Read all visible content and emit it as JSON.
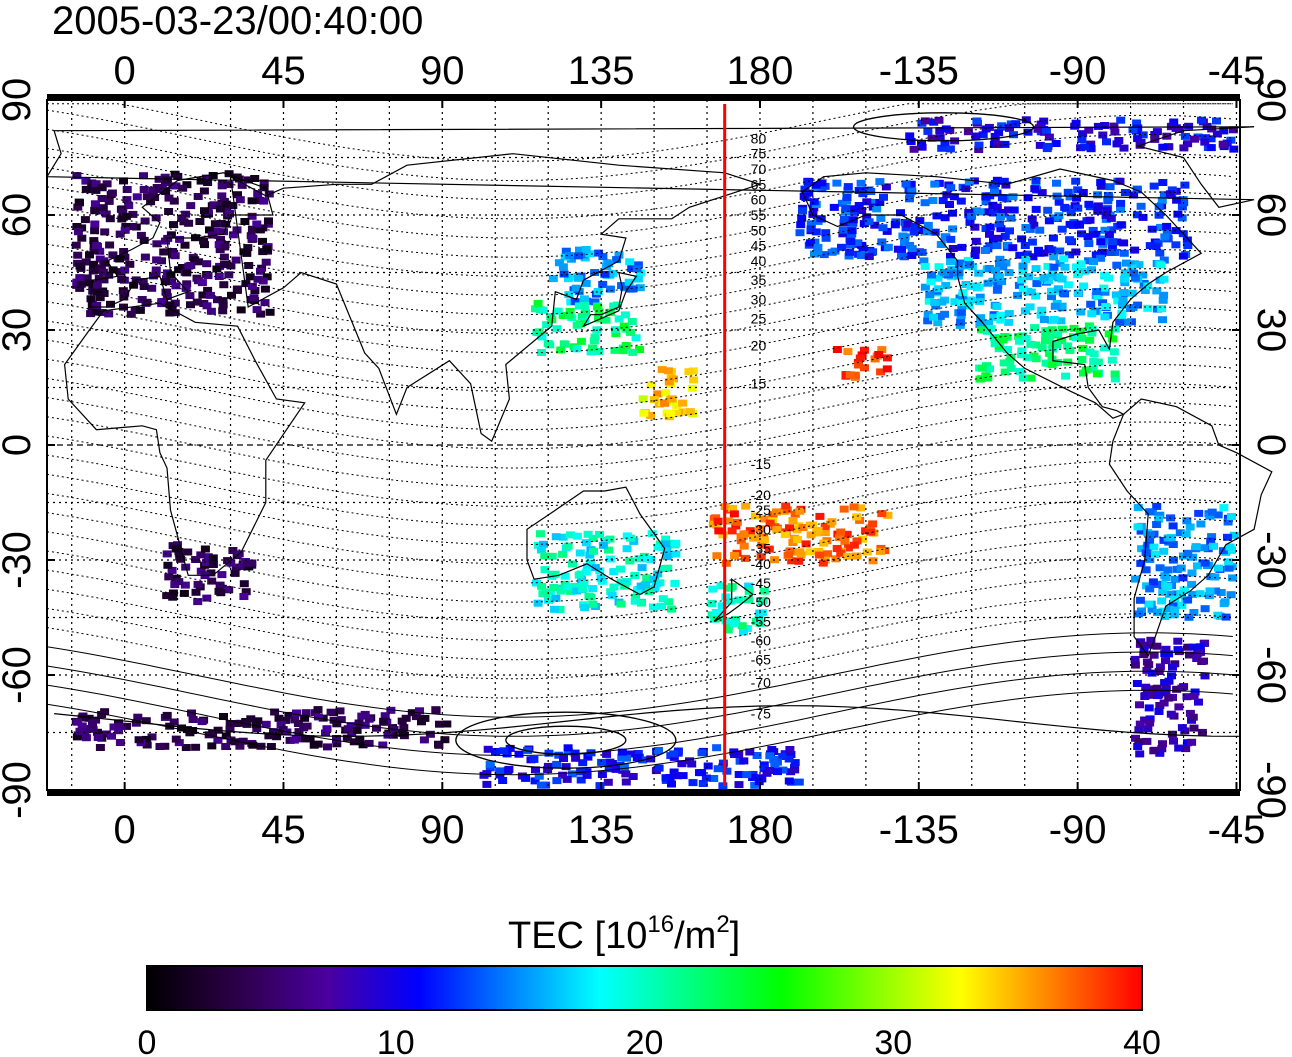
{
  "timestamp": "2005-03-23/00:40:00",
  "map": {
    "lon_ticks_top": [
      "0",
      "45",
      "90",
      "135",
      "180",
      "-135",
      "-90",
      "-45"
    ],
    "lon_ticks_bottom": [
      "0",
      "45",
      "90",
      "135",
      "180",
      "-135",
      "-90",
      "-45"
    ],
    "lat_ticks_left": [
      "90",
      "60",
      "30",
      "0",
      "-30",
      "-60",
      "-90"
    ],
    "lat_ticks_right": [
      "90",
      "60",
      "30",
      "0",
      "-30",
      "-60",
      "-90"
    ],
    "grid": true,
    "meridian_line": {
      "lon": 170,
      "color": "#ff0000"
    },
    "contour_labels": [
      {
        "text": "80",
        "lat": 80
      },
      {
        "text": "75",
        "lat": 76
      },
      {
        "text": "70",
        "lat": 72
      },
      {
        "text": "65",
        "lat": 68
      },
      {
        "text": "60",
        "lat": 64
      },
      {
        "text": "55",
        "lat": 60
      },
      {
        "text": "50",
        "lat": 56
      },
      {
        "text": "45",
        "lat": 52
      },
      {
        "text": "40",
        "lat": 48
      },
      {
        "text": "35",
        "lat": 43
      },
      {
        "text": "30",
        "lat": 38
      },
      {
        "text": "25",
        "lat": 33
      },
      {
        "text": "20",
        "lat": 26
      },
      {
        "text": "15",
        "lat": 16
      },
      {
        "text": "-15",
        "lat": -5
      },
      {
        "text": "-20",
        "lat": -13
      },
      {
        "text": "-25",
        "lat": -17
      },
      {
        "text": "-30",
        "lat": -22
      },
      {
        "text": "-35",
        "lat": -27
      },
      {
        "text": "-40",
        "lat": -31
      },
      {
        "text": "-45",
        "lat": -36
      },
      {
        "text": "-50",
        "lat": -41
      },
      {
        "text": "-55",
        "lat": -46
      },
      {
        "text": "-60",
        "lat": -51
      },
      {
        "text": "-65",
        "lat": -56
      },
      {
        "text": "-70",
        "lat": -62
      },
      {
        "text": "-75",
        "lat": -70
      }
    ]
  },
  "colorbar": {
    "label_main": "TEC  [10",
    "label_sup1": "16",
    "label_mid": "/m",
    "label_sup2": "2",
    "label_end": "]",
    "min": 0,
    "max": 40,
    "ticks": [
      "0",
      "10",
      "20",
      "30",
      "40"
    ],
    "colormap": [
      "#000000",
      "#2c0048",
      "#4a00a0",
      "#0000ff",
      "#0080ff",
      "#00ffff",
      "#00ff80",
      "#00ff00",
      "#80ff00",
      "#ffff00",
      "#ff8000",
      "#ff0000"
    ]
  },
  "tec_regions": [
    {
      "name": "europe",
      "lon0": -15,
      "lon1": 40,
      "lat0": 35,
      "lat1": 72,
      "tec": 4
    },
    {
      "name": "north-america-north",
      "lon0": -170,
      "lon1": -60,
      "lat0": 50,
      "lat1": 70,
      "tec": 12
    },
    {
      "name": "north-america-mid",
      "lon0": -135,
      "lon1": -65,
      "lat0": 32,
      "lat1": 50,
      "tec": 16
    },
    {
      "name": "north-america-south",
      "lon0": -120,
      "lon1": -80,
      "lat0": 18,
      "lat1": 32,
      "tec": 22
    },
    {
      "name": "arctic-band",
      "lon0": -140,
      "lon1": -20,
      "lat0": 78,
      "lat1": 86,
      "tec": 10
    },
    {
      "name": "east-asia-north",
      "lon0": 120,
      "lon1": 145,
      "lat0": 38,
      "lat1": 52,
      "tec": 15
    },
    {
      "name": "east-asia-south",
      "lon0": 115,
      "lon1": 145,
      "lat0": 25,
      "lat1": 38,
      "tec": 22
    },
    {
      "name": "west-pacific",
      "lon0": 145,
      "lon1": 160,
      "lat0": 8,
      "lat1": 22,
      "tec": 34
    },
    {
      "name": "hawaii",
      "lon0": -160,
      "lon1": -145,
      "lat0": 18,
      "lat1": 26,
      "tec": 39
    },
    {
      "name": "south-pacific",
      "lon0": 165,
      "lon1": -145,
      "lat0": -30,
      "lat1": -15,
      "tec": 37
    },
    {
      "name": "australia",
      "lon0": 115,
      "lon1": 155,
      "lat0": -42,
      "lat1": -22,
      "tec": 19
    },
    {
      "name": "new-zealand",
      "lon0": 165,
      "lon1": 180,
      "lat0": -48,
      "lat1": -35,
      "tec": 20
    },
    {
      "name": "south-america",
      "lon0": -75,
      "lon1": -40,
      "lat0": -45,
      "lat1": -15,
      "tec": 15
    },
    {
      "name": "southern-tip",
      "lon0": -75,
      "lon1": -55,
      "lat0": -80,
      "lat1": -50,
      "tec": 8
    },
    {
      "name": "africa-south",
      "lon0": 10,
      "lon1": 35,
      "lat0": -40,
      "lat1": -25,
      "tec": 4
    },
    {
      "name": "antarctic-coast",
      "lon0": -15,
      "lon1": 90,
      "lat0": -78,
      "lat1": -68,
      "tec": 4
    },
    {
      "name": "antarctic-blue",
      "lon0": 100,
      "lon1": 190,
      "lat0": -88,
      "lat1": -78,
      "tec": 11
    }
  ]
}
